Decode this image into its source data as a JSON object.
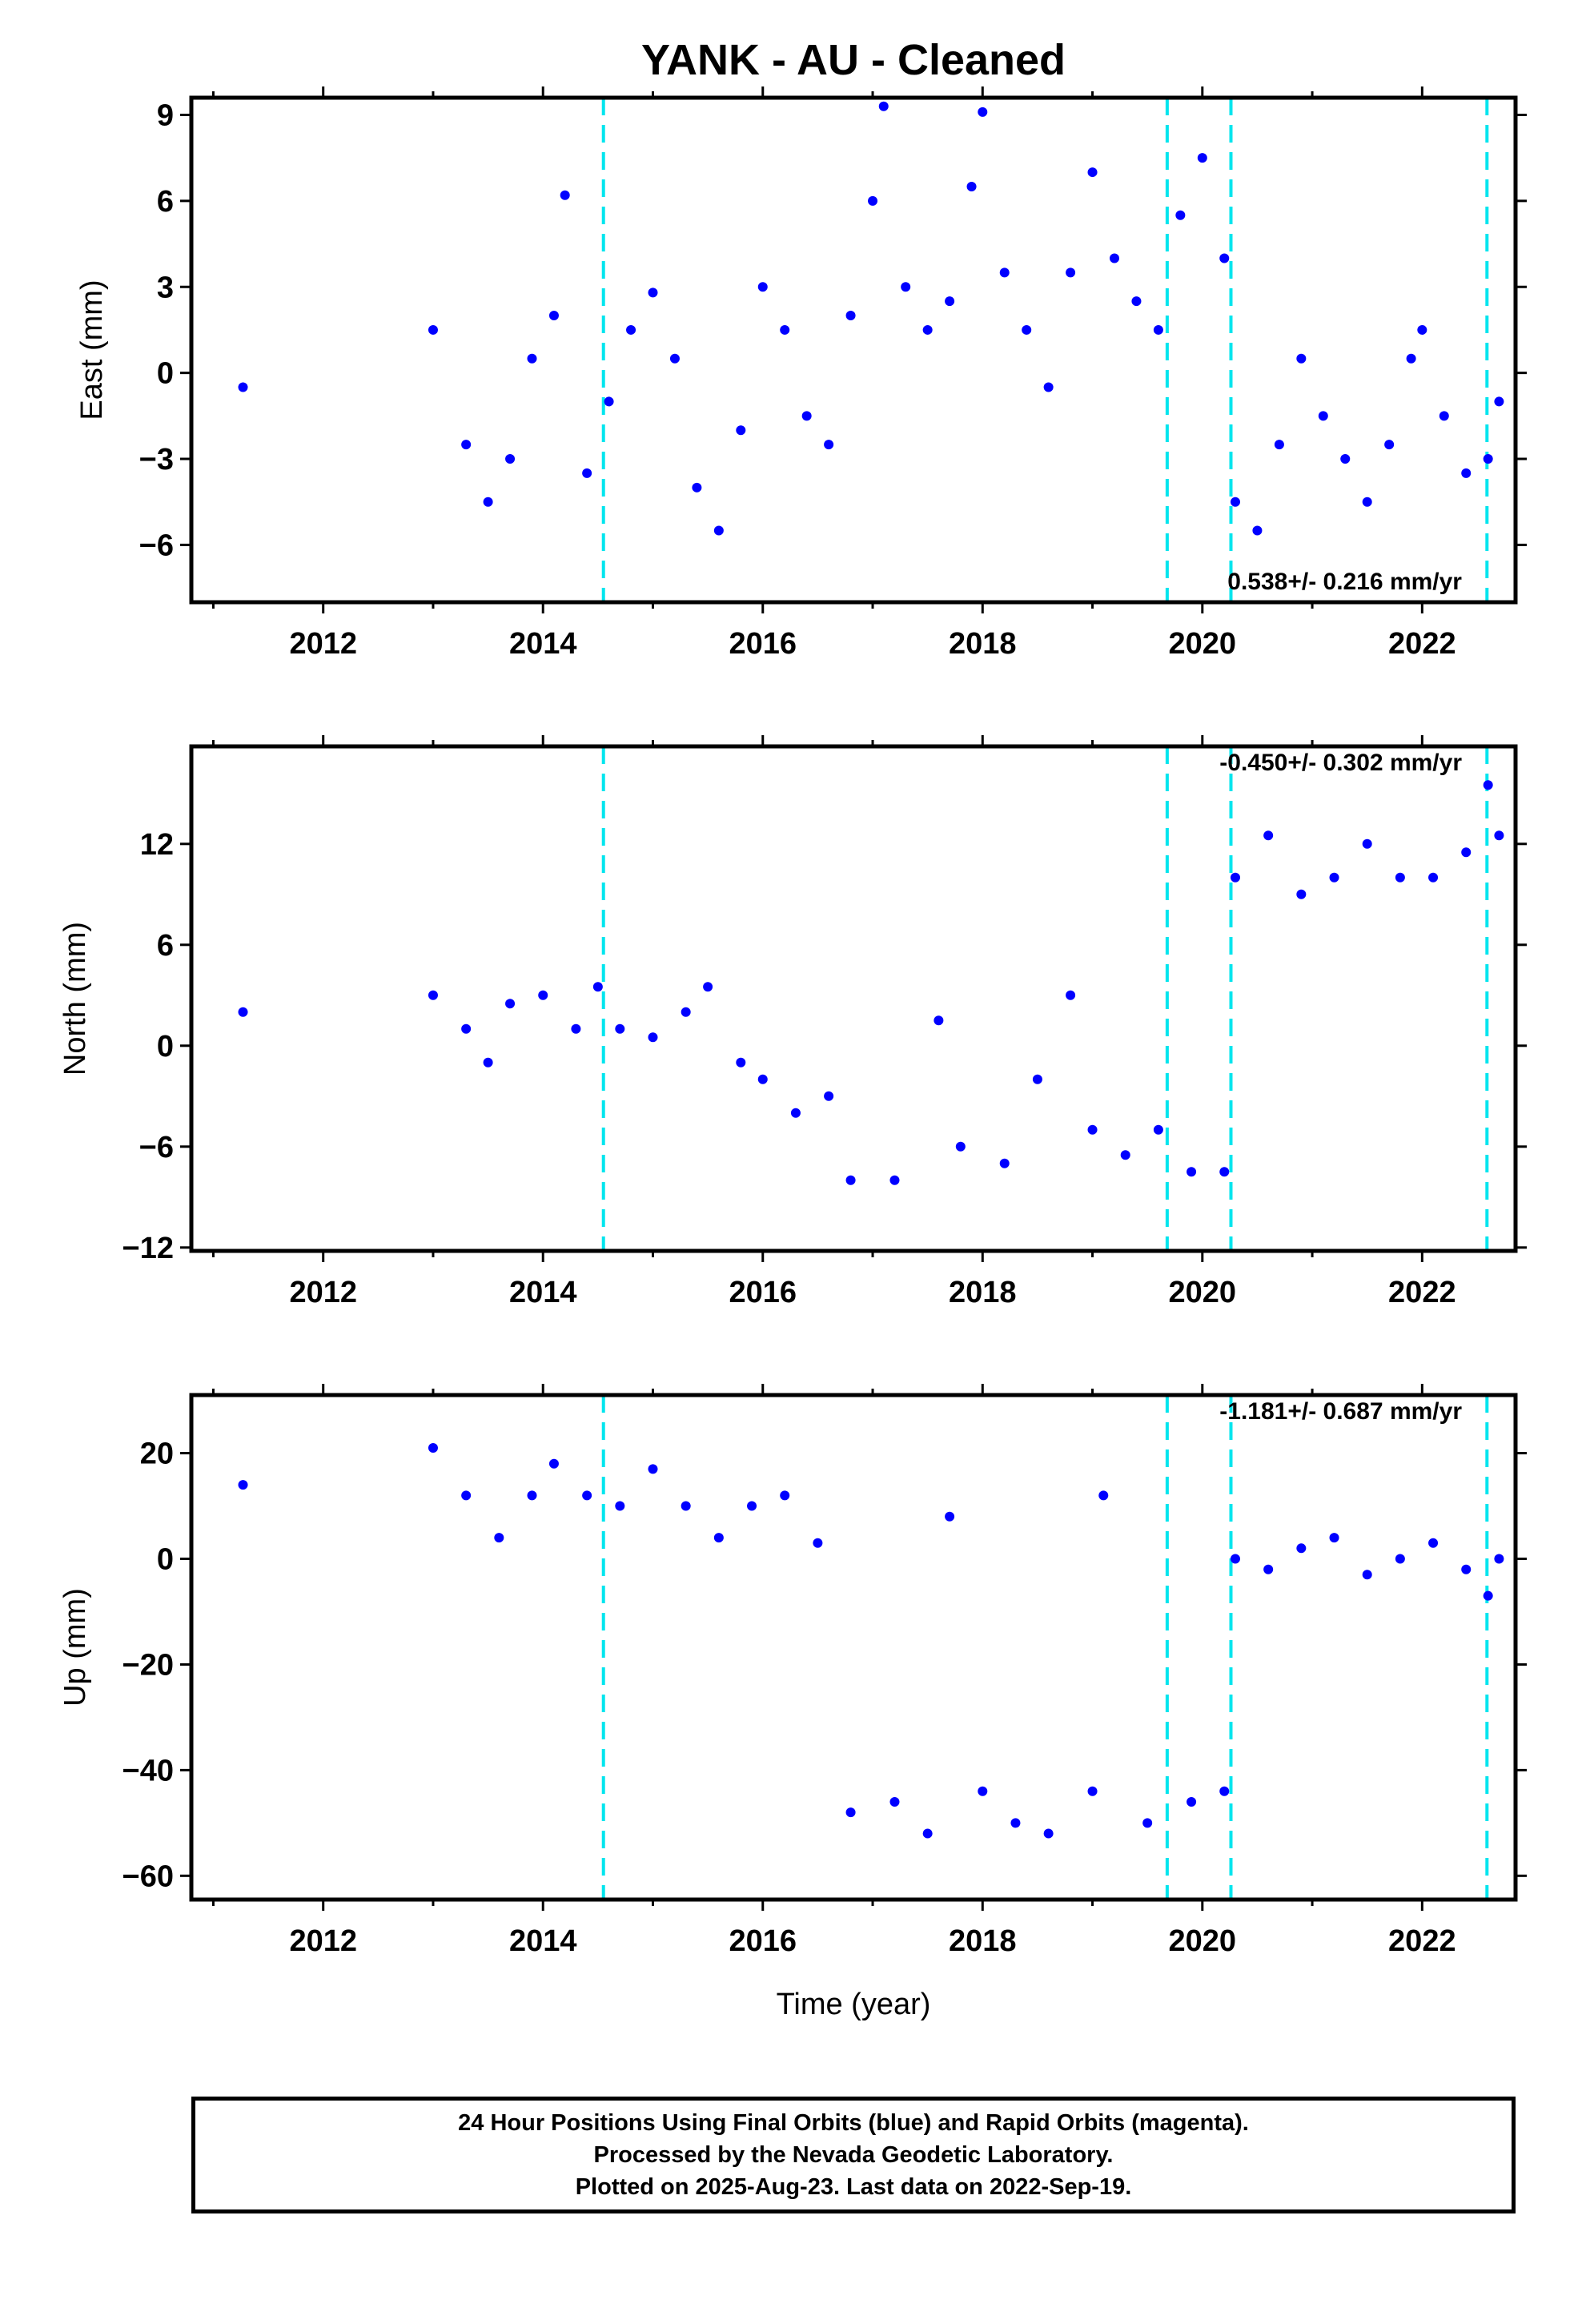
{
  "chart_data": {
    "title": "YANK  - AU - Cleaned",
    "xlabel": "Time (year)",
    "xlim": [
      2010.8,
      2022.85
    ],
    "xticks": [
      2012,
      2014,
      2016,
      2018,
      2020,
      2022
    ],
    "colors": {
      "data": "#0000ff",
      "model": "#ff0000",
      "steps": "#00e5ee"
    },
    "step_epochs": [
      2014.55,
      2019.68,
      2020.26,
      2022.59
    ],
    "panels": [
      {
        "type": "scatter",
        "ylabel": "East (mm)",
        "ylim": [
          -8.0,
          9.6
        ],
        "yticks": [
          9,
          6,
          3,
          0,
          -3,
          -6
        ],
        "rate_text": "0.538+/- 0.216 mm/yr",
        "rate_position": "bottom-right",
        "series": [
          {
            "points": [
              [
                2011.27,
                -0.5
              ],
              [
                2013.0,
                1.5
              ],
              [
                2013.3,
                -2.5
              ],
              [
                2013.5,
                -4.5
              ],
              [
                2013.7,
                -3.0
              ],
              [
                2013.9,
                0.5
              ],
              [
                2014.1,
                2.0
              ],
              [
                2014.2,
                6.2
              ],
              [
                2014.4,
                -3.5
              ],
              [
                2014.6,
                -1.0
              ],
              [
                2014.8,
                1.5
              ],
              [
                2015.0,
                2.8
              ],
              [
                2015.2,
                0.5
              ],
              [
                2015.4,
                -4.0
              ],
              [
                2015.6,
                -5.5
              ],
              [
                2015.8,
                -2.0
              ],
              [
                2016.0,
                3.0
              ],
              [
                2016.2,
                1.5
              ],
              [
                2016.4,
                -1.5
              ],
              [
                2016.6,
                -2.5
              ],
              [
                2016.8,
                2.0
              ],
              [
                2017.0,
                6.0
              ],
              [
                2017.1,
                9.3
              ],
              [
                2017.3,
                3.0
              ],
              [
                2017.5,
                1.5
              ],
              [
                2017.7,
                2.5
              ],
              [
                2017.9,
                6.5
              ],
              [
                2018.0,
                9.1
              ],
              [
                2018.2,
                3.5
              ],
              [
                2018.4,
                1.5
              ],
              [
                2018.6,
                -0.5
              ],
              [
                2018.8,
                3.5
              ],
              [
                2019.0,
                7.0
              ],
              [
                2019.2,
                4.0
              ],
              [
                2019.4,
                2.5
              ],
              [
                2019.6,
                1.5
              ],
              [
                2019.8,
                5.5
              ],
              [
                2020.0,
                7.5
              ],
              [
                2020.2,
                4.0
              ],
              [
                2020.3,
                -4.5
              ],
              [
                2020.5,
                -5.5
              ],
              [
                2020.7,
                -2.5
              ],
              [
                2020.9,
                0.5
              ],
              [
                2021.1,
                -1.5
              ],
              [
                2021.3,
                -3.0
              ],
              [
                2021.5,
                -4.5
              ],
              [
                2021.7,
                -2.5
              ],
              [
                2021.9,
                0.5
              ],
              [
                2022.0,
                1.5
              ],
              [
                2022.2,
                -1.5
              ],
              [
                2022.4,
                -3.5
              ],
              [
                2022.6,
                -3.0
              ],
              [
                2022.7,
                -1.0
              ]
            ]
          }
        ]
      },
      {
        "type": "scatter",
        "ylabel": "North (mm)",
        "ylim": [
          -12.2,
          17.8
        ],
        "yticks": [
          12,
          6,
          0,
          -6,
          -12
        ],
        "rate_text": "-0.450+/- 0.302 mm/yr",
        "rate_position": "top-right",
        "series": [
          {
            "points": [
              [
                2011.27,
                2.0
              ],
              [
                2013.0,
                3.0
              ],
              [
                2013.3,
                1.0
              ],
              [
                2013.5,
                -1.0
              ],
              [
                2013.7,
                2.5
              ],
              [
                2014.0,
                3.0
              ],
              [
                2014.3,
                1.0
              ],
              [
                2014.5,
                3.5
              ],
              [
                2014.7,
                1.0
              ],
              [
                2015.0,
                0.5
              ],
              [
                2015.3,
                2.0
              ],
              [
                2015.5,
                3.5
              ],
              [
                2015.8,
                -1.0
              ],
              [
                2016.0,
                -2.0
              ],
              [
                2016.3,
                -4.0
              ],
              [
                2016.6,
                -3.0
              ],
              [
                2016.8,
                -8.0
              ],
              [
                2017.2,
                -8.0
              ],
              [
                2017.6,
                1.5
              ],
              [
                2017.8,
                -6.0
              ],
              [
                2018.2,
                -7.0
              ],
              [
                2018.5,
                -2.0
              ],
              [
                2018.8,
                3.0
              ],
              [
                2019.0,
                -5.0
              ],
              [
                2019.3,
                -6.5
              ],
              [
                2019.6,
                -5.0
              ],
              [
                2019.9,
                -7.5
              ],
              [
                2020.2,
                -7.5
              ],
              [
                2020.3,
                10.0
              ],
              [
                2020.6,
                12.5
              ],
              [
                2020.9,
                9.0
              ],
              [
                2021.2,
                10.0
              ],
              [
                2021.5,
                12.0
              ],
              [
                2021.8,
                10.0
              ],
              [
                2022.1,
                10.0
              ],
              [
                2022.4,
                11.5
              ],
              [
                2022.6,
                15.5
              ],
              [
                2022.7,
                12.5
              ]
            ]
          }
        ]
      },
      {
        "type": "scatter",
        "ylabel": "Up (mm)",
        "ylim": [
          -64.5,
          31.0
        ],
        "yticks": [
          20,
          0,
          -20,
          -40,
          -60
        ],
        "rate_text": "-1.181+/- 0.687 mm/yr",
        "rate_position": "top-right",
        "series": [
          {
            "points": [
              [
                2011.27,
                14.0
              ],
              [
                2013.0,
                21.0
              ],
              [
                2013.3,
                12.0
              ],
              [
                2013.6,
                4.0
              ],
              [
                2013.9,
                12.0
              ],
              [
                2014.1,
                18.0
              ],
              [
                2014.4,
                12.0
              ],
              [
                2014.7,
                10.0
              ],
              [
                2015.0,
                17.0
              ],
              [
                2015.3,
                10.0
              ],
              [
                2015.6,
                4.0
              ],
              [
                2015.9,
                10.0
              ],
              [
                2016.2,
                12.0
              ],
              [
                2016.5,
                3.0
              ],
              [
                2016.8,
                -48.0
              ],
              [
                2017.2,
                -46.0
              ],
              [
                2017.5,
                -52.0
              ],
              [
                2017.7,
                8.0
              ],
              [
                2018.0,
                -44.0
              ],
              [
                2018.3,
                -50.0
              ],
              [
                2018.6,
                -52.0
              ],
              [
                2019.0,
                -44.0
              ],
              [
                2019.1,
                12.0
              ],
              [
                2019.5,
                -50.0
              ],
              [
                2019.9,
                -46.0
              ],
              [
                2020.2,
                -44.0
              ],
              [
                2020.3,
                0.0
              ],
              [
                2020.6,
                -2.0
              ],
              [
                2020.9,
                2.0
              ],
              [
                2021.2,
                4.0
              ],
              [
                2021.5,
                -3.0
              ],
              [
                2021.8,
                0.0
              ],
              [
                2022.1,
                3.0
              ],
              [
                2022.4,
                -2.0
              ],
              [
                2022.6,
                -7.0
              ],
              [
                2022.7,
                0.0
              ]
            ]
          }
        ]
      }
    ]
  },
  "caption": {
    "line1": "24 Hour Positions Using Final Orbits (blue) and Rapid Orbits (magenta).",
    "line2": "Processed by the Nevada Geodetic Laboratory.",
    "line3": "Plotted on 2025-Aug-23. Last data on 2022-Sep-19."
  }
}
